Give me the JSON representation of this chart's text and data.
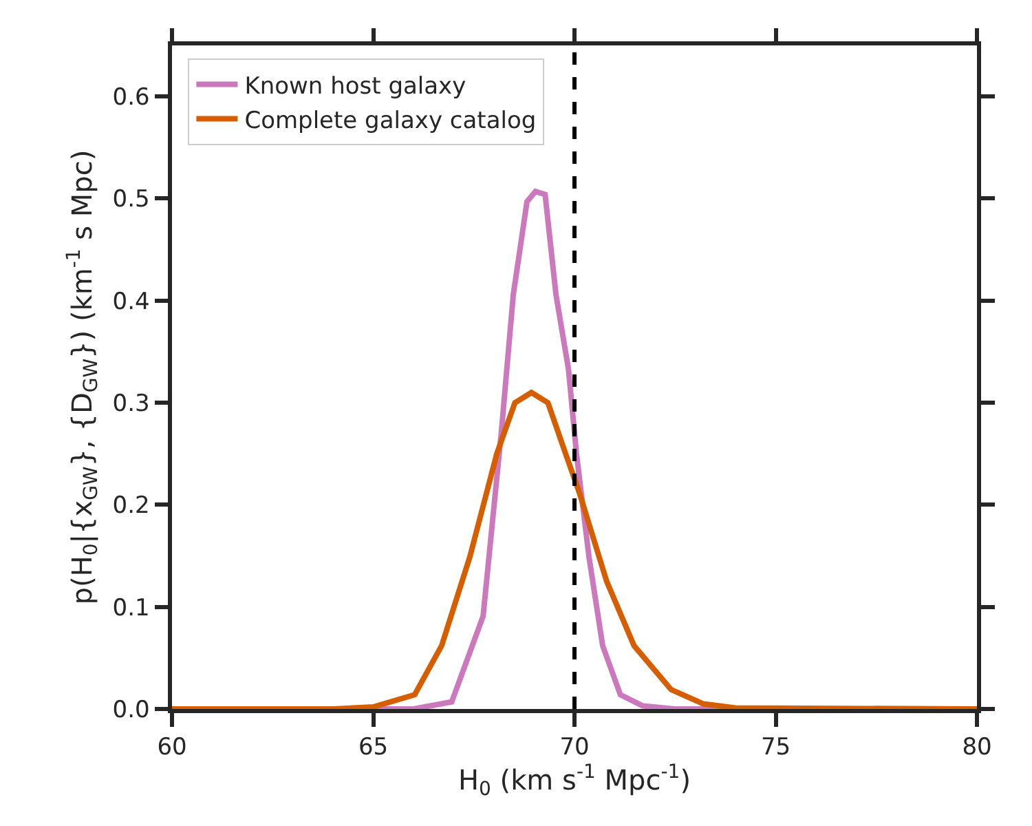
{
  "chart_data": {
    "type": "line",
    "xlabel": "H$_{0}$ (km s$^{-1}$ Mpc$^{-1}$)",
    "ylabel": "p(H$_{0}$|{x$_{GW}$}, {D$_{GW}$}) (km$^{-1}$ s Mpc)",
    "series": [
      {
        "name": "Known host galaxy",
        "color": "#cc78bc",
        "x": [
          60,
          66,
          66.95,
          67.73,
          68.18,
          68.48,
          68.82,
          69.03,
          69.27,
          69.54,
          69.85,
          70.05,
          70.36,
          70.7,
          71.14,
          71.7,
          72.5,
          80
        ],
        "values": [
          0,
          0,
          0.007,
          0.091,
          0.27,
          0.406,
          0.497,
          0.507,
          0.504,
          0.406,
          0.333,
          0.25,
          0.149,
          0.062,
          0.014,
          0.003,
          0,
          0
        ]
      },
      {
        "name": "Complete galaxy catalog",
        "color": "#d55e00",
        "x": [
          60,
          64,
          65,
          66.03,
          66.7,
          67.4,
          68.07,
          68.52,
          68.93,
          69.34,
          69.78,
          70.12,
          70.8,
          71.48,
          72.4,
          73.2,
          74,
          80
        ],
        "values": [
          0,
          0,
          0.002,
          0.014,
          0.062,
          0.149,
          0.25,
          0.3,
          0.31,
          0.3,
          0.25,
          0.212,
          0.125,
          0.062,
          0.019,
          0.005,
          0.001,
          0
        ]
      }
    ],
    "xlim": [
      60,
      80
    ],
    "xticks": [
      60,
      65,
      70,
      75,
      80
    ],
    "ylim": [
      0,
      0.65
    ],
    "yticks": [
      {
        "value": 0,
        "label": "0.0"
      },
      0.1,
      0.2,
      0.3,
      0.4,
      0.5,
      0.6
    ],
    "ref_lines": [
      {
        "axis": "x",
        "value": 70,
        "color": "#000000",
        "line_style": "dashed"
      }
    ],
    "legend": "top left",
    "marker": "none",
    "line_style": "solid"
  }
}
